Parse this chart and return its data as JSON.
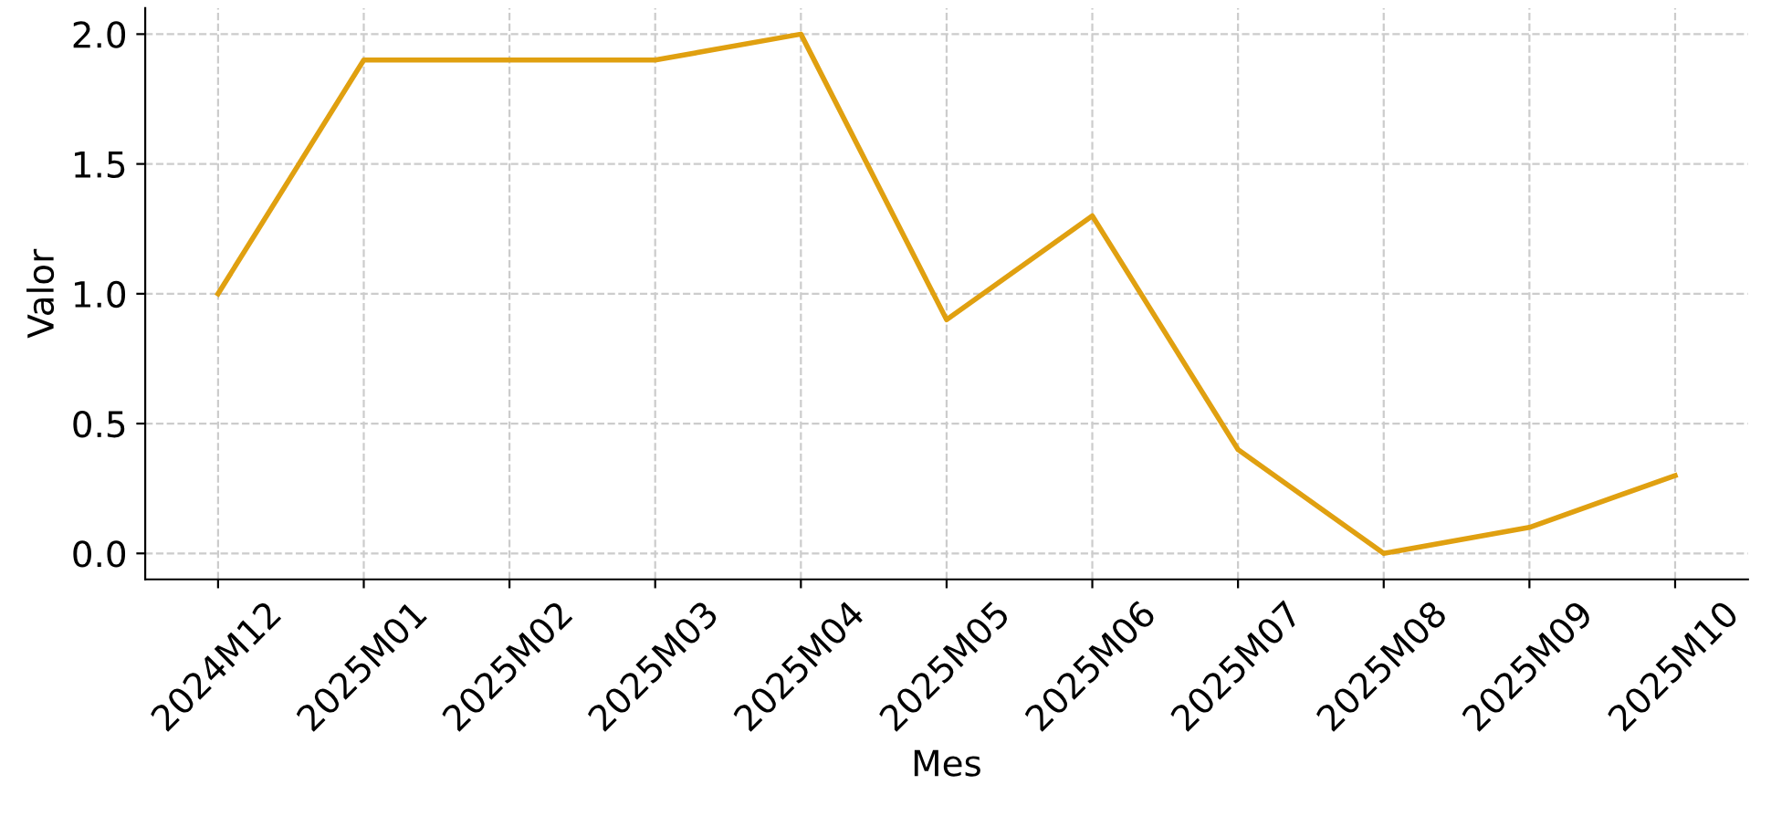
{
  "chart_data": {
    "type": "line",
    "xlabel": "Mes",
    "ylabel": "Valor",
    "categories": [
      "2024M12",
      "2025M01",
      "2025M02",
      "2025M03",
      "2025M04",
      "2025M05",
      "2025M06",
      "2025M07",
      "2025M08",
      "2025M09",
      "2025M10"
    ],
    "series": [
      {
        "color": "#e0a010",
        "values": [
          1.0,
          1.9,
          1.9,
          1.9,
          2.0,
          0.9,
          1.3,
          0.4,
          0.0,
          0.1,
          0.3
        ]
      }
    ],
    "ylim": [
      -0.1,
      2.1
    ],
    "yticks": [
      {
        "value": 0,
        "label": "0.0"
      },
      0.5,
      {
        "value": 1,
        "label": "1.0"
      },
      1.5,
      {
        "value": 2,
        "label": "2.0"
      }
    ],
    "grid": true,
    "line_style": "solid",
    "marker": "none",
    "legend": false
  }
}
